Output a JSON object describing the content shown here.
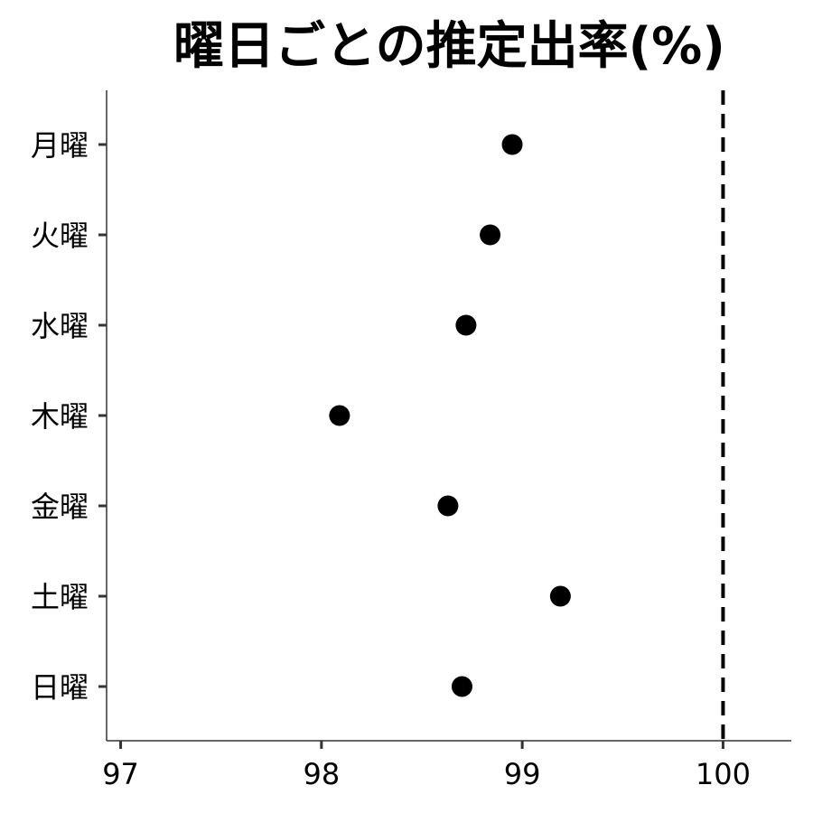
{
  "chart_data": {
    "type": "scatter",
    "title": "曜日ごとの推定出率(%)",
    "xlabel": "",
    "ylabel": "",
    "categories": [
      "月曜",
      "火曜",
      "水曜",
      "木曜",
      "金曜",
      "土曜",
      "日曜"
    ],
    "values": [
      98.95,
      98.84,
      98.72,
      98.09,
      98.63,
      99.19,
      98.7
    ],
    "xlim": [
      96.93,
      100.34
    ],
    "xticks": [
      97,
      98,
      99,
      100
    ],
    "reference_line": {
      "x": 100,
      "style": "dashed"
    },
    "grid": false,
    "colors": {
      "points": "#000000",
      "axis": "#333333",
      "reference": "#000000"
    }
  }
}
